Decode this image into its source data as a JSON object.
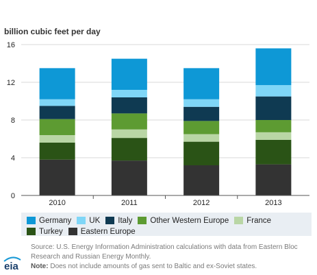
{
  "chart_data": {
    "type": "bar",
    "stacked": true,
    "unit_label": "billion cubic feet per day",
    "categories": [
      "2010",
      "2011",
      "2012",
      "2013"
    ],
    "ylim": [
      0,
      16
    ],
    "yticks": [
      "0",
      "4",
      "8",
      "12",
      "16"
    ],
    "grid": true,
    "legend_position": "bottom",
    "series": [
      {
        "name": "Eastern Europe",
        "color": "#333333",
        "values": [
          3.8,
          3.7,
          3.2,
          3.3
        ]
      },
      {
        "name": "Turkey",
        "color": "#2a5316",
        "values": [
          1.8,
          2.4,
          2.5,
          2.6
        ]
      },
      {
        "name": "France",
        "color": "#b9d6a5",
        "values": [
          0.8,
          0.9,
          0.8,
          0.8
        ]
      },
      {
        "name": "Other Western Europe",
        "color": "#5d9b32",
        "values": [
          1.7,
          1.7,
          1.4,
          1.3
        ]
      },
      {
        "name": "Italy",
        "color": "#0f3a52",
        "values": [
          1.4,
          1.7,
          1.5,
          2.5
        ]
      },
      {
        "name": "UK",
        "color": "#7fd6f7",
        "values": [
          0.7,
          0.8,
          0.8,
          1.2
        ]
      },
      {
        "name": "Germany",
        "color": "#0e98d6",
        "values": [
          3.3,
          3.3,
          3.3,
          3.9
        ]
      }
    ]
  },
  "legend_rows": [
    [
      "Germany",
      "UK",
      "Italy",
      "Other Western Europe",
      "France"
    ],
    [
      "Turkey",
      "Eastern Europe"
    ]
  ],
  "footer": {
    "logo_text": "eia",
    "source": "Source: U.S. Energy Information Administration calculations with data from Eastern Bloc Research and Russian Energy Monthly.",
    "note_label": "Note:",
    "note_text": " Does not include amounts of gas sent to Baltic and ex-Soviet states."
  }
}
